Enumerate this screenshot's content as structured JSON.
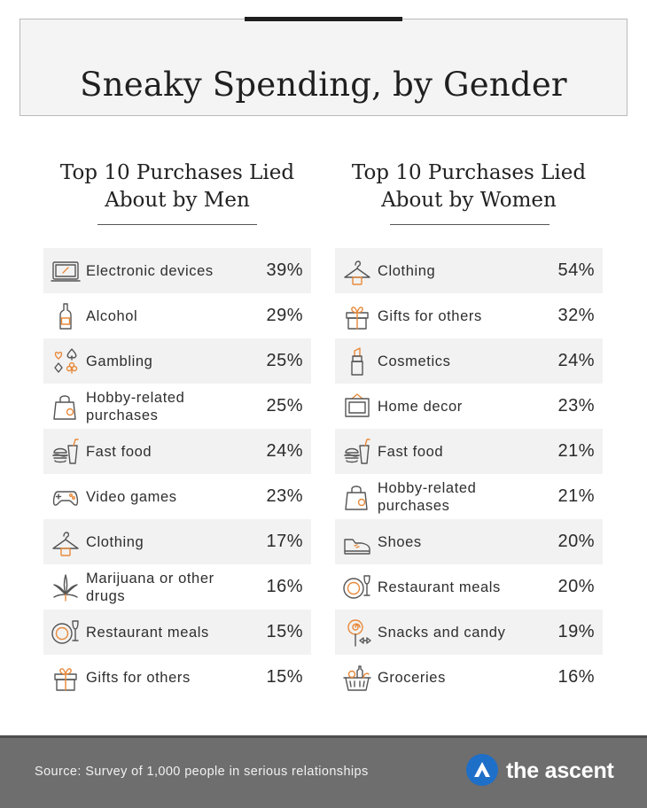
{
  "title": "Sneaky Spending, by Gender",
  "men": {
    "heading_line1": "Top 10 Purchases Lied",
    "heading_line2": "About by Men",
    "items": [
      {
        "icon": "laptop-icon",
        "label": "Electronic devices",
        "percent": "39%"
      },
      {
        "icon": "bottle-icon",
        "label": "Alcohol",
        "percent": "29%"
      },
      {
        "icon": "card-suits-icon",
        "label": "Gambling",
        "percent": "25%"
      },
      {
        "icon": "shopping-bag-icon",
        "label": "Hobby-related purchases",
        "percent": "25%"
      },
      {
        "icon": "burger-drink-icon",
        "label": "Fast food",
        "percent": "24%"
      },
      {
        "icon": "game-controller-icon",
        "label": "Video games",
        "percent": "23%"
      },
      {
        "icon": "hanger-icon",
        "label": "Clothing",
        "percent": "17%"
      },
      {
        "icon": "cannabis-leaf-icon",
        "label": "Marijuana or other drugs",
        "percent": "16%"
      },
      {
        "icon": "plate-wine-icon",
        "label": "Restaurant meals",
        "percent": "15%"
      },
      {
        "icon": "gift-icon",
        "label": "Gifts for others",
        "percent": "15%"
      }
    ]
  },
  "women": {
    "heading_line1": "Top 10 Purchases Lied",
    "heading_line2": "About by Women",
    "items": [
      {
        "icon": "hanger-icon",
        "label": "Clothing",
        "percent": "54%"
      },
      {
        "icon": "gift-icon",
        "label": "Gifts for others",
        "percent": "32%"
      },
      {
        "icon": "lipstick-icon",
        "label": "Cosmetics",
        "percent": "24%"
      },
      {
        "icon": "picture-frame-icon",
        "label": "Home decor",
        "percent": "23%"
      },
      {
        "icon": "burger-drink-icon",
        "label": "Fast food",
        "percent": "21%"
      },
      {
        "icon": "shopping-bag-icon",
        "label": "Hobby-related purchases",
        "percent": "21%"
      },
      {
        "icon": "shoe-icon",
        "label": "Shoes",
        "percent": "20%"
      },
      {
        "icon": "plate-wine-icon",
        "label": "Restaurant meals",
        "percent": "20%"
      },
      {
        "icon": "lollipop-icon",
        "label": "Snacks and candy",
        "percent": "19%"
      },
      {
        "icon": "grocery-basket-icon",
        "label": "Groceries",
        "percent": "16%"
      }
    ]
  },
  "footer": {
    "source": "Source: Survey of 1,000 people in serious relationships",
    "brand": "the ascent",
    "brand_color": "#1e6fc8"
  },
  "colors": {
    "accent": "#e8893a",
    "row_stripe": "#f2f2f2",
    "footer_bg": "#6e6e6e"
  }
}
